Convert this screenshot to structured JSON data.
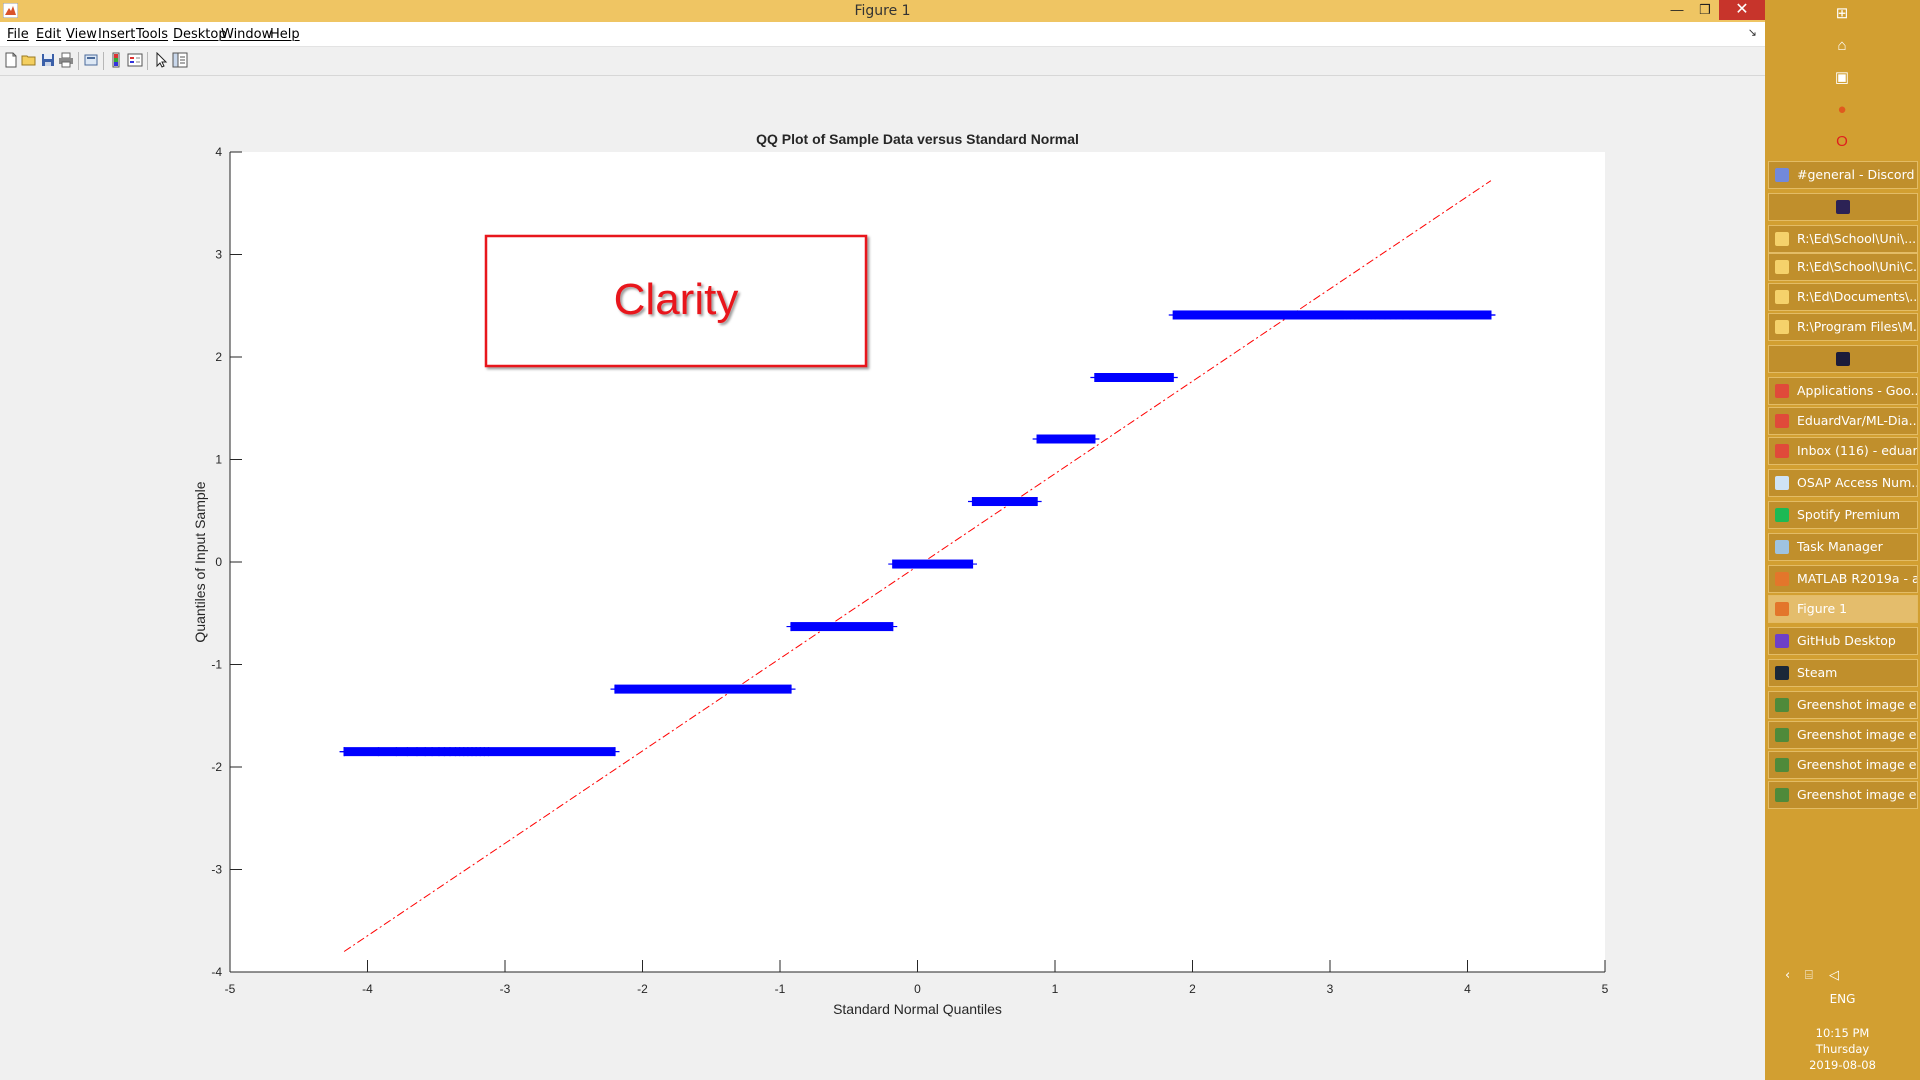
{
  "window": {
    "title": "Figure 1",
    "controls": {
      "minimize": "—",
      "maximize": "❒",
      "close": "✕"
    }
  },
  "menu": {
    "items": [
      "File",
      "Edit",
      "View",
      "Insert",
      "Tools",
      "Desktop",
      "Window",
      "Help"
    ],
    "dock_glyph": "↘"
  },
  "toolbar": {
    "icons": [
      "new-figure-icon",
      "open-file-icon",
      "save-icon",
      "print-icon",
      "print-preview-icon",
      "colorbar-icon",
      "legend-icon",
      "edit-pointer-icon",
      "property-inspector-icon"
    ]
  },
  "annotation": {
    "text": "Clarity",
    "color": "#e8161d"
  },
  "chart_data": {
    "type": "scatter",
    "title": "QQ Plot of Sample Data versus Standard Normal",
    "xlabel": "Standard Normal Quantiles",
    "ylabel": "Quantiles of Input Sample",
    "xlim": [
      -5,
      5
    ],
    "ylim": [
      -4,
      4
    ],
    "xticks": [
      -5,
      -4,
      -3,
      -2,
      -1,
      0,
      1,
      2,
      3,
      4,
      5
    ],
    "yticks": [
      -4,
      -3,
      -2,
      -1,
      0,
      1,
      2,
      3,
      4
    ],
    "grid": false,
    "series": [
      {
        "marker": "+",
        "color": "#0000ff",
        "segments": [
          {
            "y": -1.85,
            "x_start": -4.17,
            "x_end": -2.2
          },
          {
            "y": -1.24,
            "x_start": -2.2,
            "x_end": -0.92
          },
          {
            "y": -0.63,
            "x_start": -0.92,
            "x_end": -0.18
          },
          {
            "y": -0.02,
            "x_start": -0.18,
            "x_end": 0.4
          },
          {
            "y": 0.59,
            "x_start": 0.4,
            "x_end": 0.87
          },
          {
            "y": 1.2,
            "x_start": 0.87,
            "x_end": 1.29
          },
          {
            "y": 1.8,
            "x_start": 1.29,
            "x_end": 1.86
          },
          {
            "y": 2.41,
            "x_start": 1.86,
            "x_end": 4.17
          }
        ]
      },
      {
        "type": "line",
        "style": "dash-dot",
        "color": "#ff0000",
        "x": [
          -4.17,
          4.17
        ],
        "y": [
          -3.8,
          3.72
        ]
      }
    ]
  },
  "taskbar": {
    "top_icons": [
      {
        "name": "start-icon",
        "glyph": "⊞",
        "color": "#ffffff"
      },
      {
        "name": "home-icon",
        "glyph": "⌂",
        "color": "#ffffff"
      },
      {
        "name": "network-icon",
        "glyph": "▣",
        "color": "#ffffff"
      },
      {
        "name": "firefox-icon",
        "glyph": "●",
        "color": "#e05a1e"
      },
      {
        "name": "opera-icon",
        "glyph": "O",
        "color": "#e01e1e"
      }
    ],
    "tasks": [
      {
        "label": "#general - Discord",
        "icon": "discord-icon",
        "color": "#7289da",
        "active": false
      },
      {
        "label": "",
        "icon": "eclipse-icon",
        "color": "#2c2255",
        "active": false
      },
      {
        "label": "R:\\Ed\\School\\Uni\\...",
        "icon": "folder-icon",
        "color": "#f5d26b",
        "active": false
      },
      {
        "label": "R:\\Ed\\School\\Uni\\C...",
        "icon": "folder-icon",
        "color": "#f5d26b",
        "active": false
      },
      {
        "label": "R:\\Ed\\Documents\\...",
        "icon": "folder-icon",
        "color": "#f5d26b",
        "active": false
      },
      {
        "label": "R:\\Program Files\\M...",
        "icon": "folder-icon",
        "color": "#f5d26b",
        "active": false
      },
      {
        "label": "",
        "icon": "visual-studio-icon",
        "color": "#1b1b3a",
        "active": false
      },
      {
        "label": "Applications - Goo...",
        "icon": "chrome-icon",
        "color": "#e04a3a",
        "active": false
      },
      {
        "label": "EduardVar/ML-Dia...",
        "icon": "chrome-icon",
        "color": "#e04a3a",
        "active": false
      },
      {
        "label": "Inbox (116) - eduar...",
        "icon": "chrome-icon",
        "color": "#e04a3a",
        "active": false
      },
      {
        "label": "OSAP Access Num...",
        "icon": "notepad-icon",
        "color": "#cfe3f5",
        "active": false
      },
      {
        "label": "Spotify Premium",
        "icon": "spotify-icon",
        "color": "#1db954",
        "active": false
      },
      {
        "label": "Task Manager",
        "icon": "task-manager-icon",
        "color": "#9fc3e0",
        "active": false
      },
      {
        "label": "MATLAB R2019a - a...",
        "icon": "matlab-icon",
        "color": "#e3762b",
        "active": false
      },
      {
        "label": "Figure 1",
        "icon": "matlab-figure-icon",
        "color": "#e3762b",
        "active": true
      },
      {
        "label": "GitHub Desktop",
        "icon": "github-icon",
        "color": "#6e40c9",
        "active": false
      },
      {
        "label": "Steam",
        "icon": "steam-icon",
        "color": "#1b2838",
        "active": false
      },
      {
        "label": "Greenshot image e...",
        "icon": "greenshot-icon",
        "color": "#4f8a3a",
        "active": false
      },
      {
        "label": "Greenshot image e...",
        "icon": "greenshot-icon",
        "color": "#4f8a3a",
        "active": false
      },
      {
        "label": "Greenshot image e...",
        "icon": "greenshot-icon",
        "color": "#4f8a3a",
        "active": false
      },
      {
        "label": "Greenshot image e...",
        "icon": "greenshot-icon",
        "color": "#4f8a3a",
        "active": false
      }
    ],
    "tray": {
      "icons": [
        {
          "name": "tray-expand-icon",
          "glyph": "‹"
        },
        {
          "name": "network-status-icon",
          "glyph": "⌸"
        },
        {
          "name": "volume-icon",
          "glyph": "◁"
        }
      ],
      "language": "ENG",
      "time": "10:15 PM",
      "day": "Thursday",
      "date": "2019-08-08"
    }
  }
}
